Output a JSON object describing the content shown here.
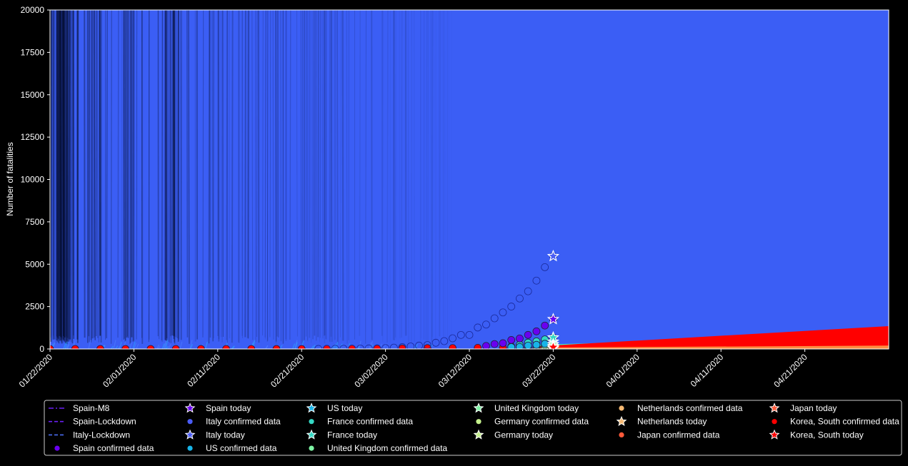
{
  "chart_data": {
    "type": "line",
    "ylabel": "Number of fatalities",
    "xlabel": "",
    "ylim": [
      0,
      20000
    ],
    "xlim_dates": [
      "2020-01-22",
      "2020-05-01"
    ],
    "yticks": [
      0,
      2500,
      5000,
      7500,
      10000,
      12500,
      15000,
      17500,
      20000
    ],
    "xtick_labels": [
      "01/22/2020",
      "02/01/2020",
      "02/11/2020",
      "02/21/2020",
      "03/02/2020",
      "03/12/2020",
      "03/22/2020",
      "04/01/2020",
      "04/11/2020",
      "04/21/2020"
    ],
    "xtick_dates": [
      "2020-01-22",
      "2020-02-01",
      "2020-02-11",
      "2020-02-21",
      "2020-03-02",
      "2020-03-12",
      "2020-03-22",
      "2020-04-01",
      "2020-04-11",
      "2020-04-21"
    ],
    "background": "#000000",
    "grid": false,
    "legend_placement": "bottom",
    "model_bands": [
      {
        "name": "Spain-M8",
        "color": "#3b5ef5",
        "x": [
          "2020-01-22",
          "2020-05-01"
        ],
        "y_low": [
          0,
          0
        ],
        "y_high": [
          20000,
          20000
        ]
      },
      {
        "name": "United Kingdom band",
        "color": "#39f0c8",
        "x": [
          "2020-03-20",
          "2020-05-01"
        ],
        "y_low": [
          0,
          300
        ],
        "y_high": [
          250,
          800
        ]
      },
      {
        "name": "Korea, South band",
        "color": "#ff0000",
        "x": [
          "2020-03-20",
          "2020-05-01"
        ],
        "y_low": [
          0,
          150
        ],
        "y_high": [
          150,
          1350
        ]
      },
      {
        "name": "Japan band",
        "color": "#ff8c40",
        "x": [
          "2020-03-20",
          "2020-05-01"
        ],
        "y_low": [
          0,
          0
        ],
        "y_high": [
          80,
          200
        ]
      }
    ],
    "series": [
      {
        "name": "Spain-M8",
        "kind": "dashdot-line",
        "color": "#6a1ff5"
      },
      {
        "name": "Spain-Lockdown",
        "kind": "dashed-line",
        "color": "#6a1ff5"
      },
      {
        "name": "Italy-Lockdown",
        "kind": "dashed-line",
        "color": "#4a6cf0"
      },
      {
        "name": "Spain confirmed data",
        "kind": "points",
        "color": "#6a00f0",
        "x": [
          "2020-03-14",
          "2020-03-15",
          "2020-03-16",
          "2020-03-17",
          "2020-03-18",
          "2020-03-19",
          "2020-03-20",
          "2020-03-21",
          "2020-03-22"
        ],
        "y": [
          180,
          290,
          340,
          530,
          620,
          830,
          1040,
          1380,
          1756
        ]
      },
      {
        "name": "Spain today",
        "kind": "star",
        "color": "#6a00f0",
        "x": [
          "2020-03-22"
        ],
        "y": [
          1756
        ]
      },
      {
        "name": "Italy confirmed data",
        "kind": "points",
        "color": "#4a5cf5",
        "x": [
          "2020-02-23",
          "2020-02-24",
          "2020-02-25",
          "2020-02-26",
          "2020-02-27",
          "2020-02-28",
          "2020-02-29",
          "2020-03-01",
          "2020-03-02",
          "2020-03-03",
          "2020-03-04",
          "2020-03-05",
          "2020-03-06",
          "2020-03-07",
          "2020-03-08",
          "2020-03-09",
          "2020-03-10",
          "2020-03-11",
          "2020-03-12",
          "2020-03-13",
          "2020-03-14",
          "2020-03-15",
          "2020-03-16",
          "2020-03-17",
          "2020-03-18",
          "2020-03-19",
          "2020-03-20",
          "2020-03-21",
          "2020-03-22"
        ],
        "y": [
          3,
          7,
          10,
          12,
          17,
          21,
          29,
          34,
          52,
          79,
          107,
          148,
          197,
          233,
          366,
          463,
          631,
          827,
          827,
          1266,
          1441,
          1809,
          2158,
          2503,
          2978,
          3405,
          4032,
          4825,
          5476
        ]
      },
      {
        "name": "Italy today",
        "kind": "star",
        "color": "#4a5cf5",
        "x": [
          "2020-03-22"
        ],
        "y": [
          5476
        ]
      },
      {
        "name": "US confirmed data",
        "kind": "points",
        "color": "#18b4e8",
        "x": [
          "2020-03-17",
          "2020-03-18",
          "2020-03-19",
          "2020-03-20",
          "2020-03-21",
          "2020-03-22"
        ],
        "y": [
          108,
          118,
          200,
          244,
          307,
          427
        ]
      },
      {
        "name": "US today",
        "kind": "star",
        "color": "#18b4e8",
        "x": [
          "2020-03-22"
        ],
        "y": [
          427
        ]
      },
      {
        "name": "France confirmed data",
        "kind": "points",
        "color": "#34d8c4",
        "x": [
          "2020-03-17",
          "2020-03-18",
          "2020-03-19",
          "2020-03-20",
          "2020-03-21",
          "2020-03-22"
        ],
        "y": [
          148,
          243,
          372,
          450,
          562,
          674
        ]
      },
      {
        "name": "France today",
        "kind": "star",
        "color": "#34d8c4",
        "x": [
          "2020-03-22"
        ],
        "y": [
          674
        ]
      },
      {
        "name": "United Kingdom confirmed data",
        "kind": "points",
        "color": "#7ef5a4",
        "x": [
          "2020-03-18",
          "2020-03-19",
          "2020-03-20",
          "2020-03-21",
          "2020-03-22"
        ],
        "y": [
          104,
          144,
          178,
          233,
          281
        ]
      },
      {
        "name": "United Kingdom today",
        "kind": "star",
        "color": "#7ef5a4",
        "x": [
          "2020-03-22"
        ],
        "y": [
          281
        ]
      },
      {
        "name": "Germany confirmed data",
        "kind": "points",
        "color": "#c4f08c",
        "x": [
          "2020-03-19",
          "2020-03-20",
          "2020-03-21",
          "2020-03-22"
        ],
        "y": [
          44,
          67,
          84,
          94
        ]
      },
      {
        "name": "Germany today",
        "kind": "star",
        "color": "#c4f08c",
        "x": [
          "2020-03-22"
        ],
        "y": [
          94
        ]
      },
      {
        "name": "Netherlands confirmed data",
        "kind": "points",
        "color": "#f5b872",
        "x": [
          "2020-03-19",
          "2020-03-20",
          "2020-03-21",
          "2020-03-22"
        ],
        "y": [
          76,
          106,
          136,
          179
        ]
      },
      {
        "name": "Netherlands today",
        "kind": "star",
        "color": "#f5b872",
        "x": [
          "2020-03-22"
        ],
        "y": [
          179
        ]
      },
      {
        "name": "Japan confirmed data",
        "kind": "points",
        "color": "#ff5a3a",
        "x": [
          "2020-03-20",
          "2020-03-21",
          "2020-03-22"
        ],
        "y": [
          35,
          36,
          41
        ]
      },
      {
        "name": "Japan today",
        "kind": "star",
        "color": "#ff5a3a",
        "x": [
          "2020-03-22"
        ],
        "y": [
          41
        ]
      },
      {
        "name": "Korea, South confirmed data",
        "kind": "points",
        "color": "#ff0000",
        "x": [
          "2020-01-22",
          "2020-01-25",
          "2020-01-28",
          "2020-01-31",
          "2020-02-03",
          "2020-02-06",
          "2020-02-09",
          "2020-02-12",
          "2020-02-15",
          "2020-02-18",
          "2020-02-21",
          "2020-02-24",
          "2020-02-27",
          "2020-03-01",
          "2020-03-04",
          "2020-03-07",
          "2020-03-10",
          "2020-03-13",
          "2020-03-16",
          "2020-03-19",
          "2020-03-22"
        ],
        "y": [
          0,
          0,
          0,
          0,
          0,
          0,
          0,
          0,
          0,
          0,
          1,
          8,
          13,
          17,
          32,
          50,
          54,
          67,
          75,
          94,
          104
        ]
      },
      {
        "name": "Korea, South today",
        "kind": "star",
        "color": "#ff0000",
        "x": [
          "2020-03-22"
        ],
        "y": [
          104
        ]
      }
    ],
    "legend_columns": [
      [
        "Spain-M8",
        "Spain-Lockdown",
        "Italy-Lockdown",
        "Spain confirmed data"
      ],
      [
        "Spain today",
        "Italy confirmed data",
        "Italy today",
        "US confirmed data"
      ],
      [
        "US today",
        "France confirmed data",
        "France today",
        "United Kingdom confirmed data"
      ],
      [
        "United Kingdom today",
        "Germany confirmed data",
        "Germany today"
      ],
      [
        "Netherlands confirmed data",
        "Netherlands today",
        "Japan confirmed data"
      ],
      [
        "Japan today",
        "Korea, South confirmed data",
        "Korea, South today"
      ]
    ]
  }
}
